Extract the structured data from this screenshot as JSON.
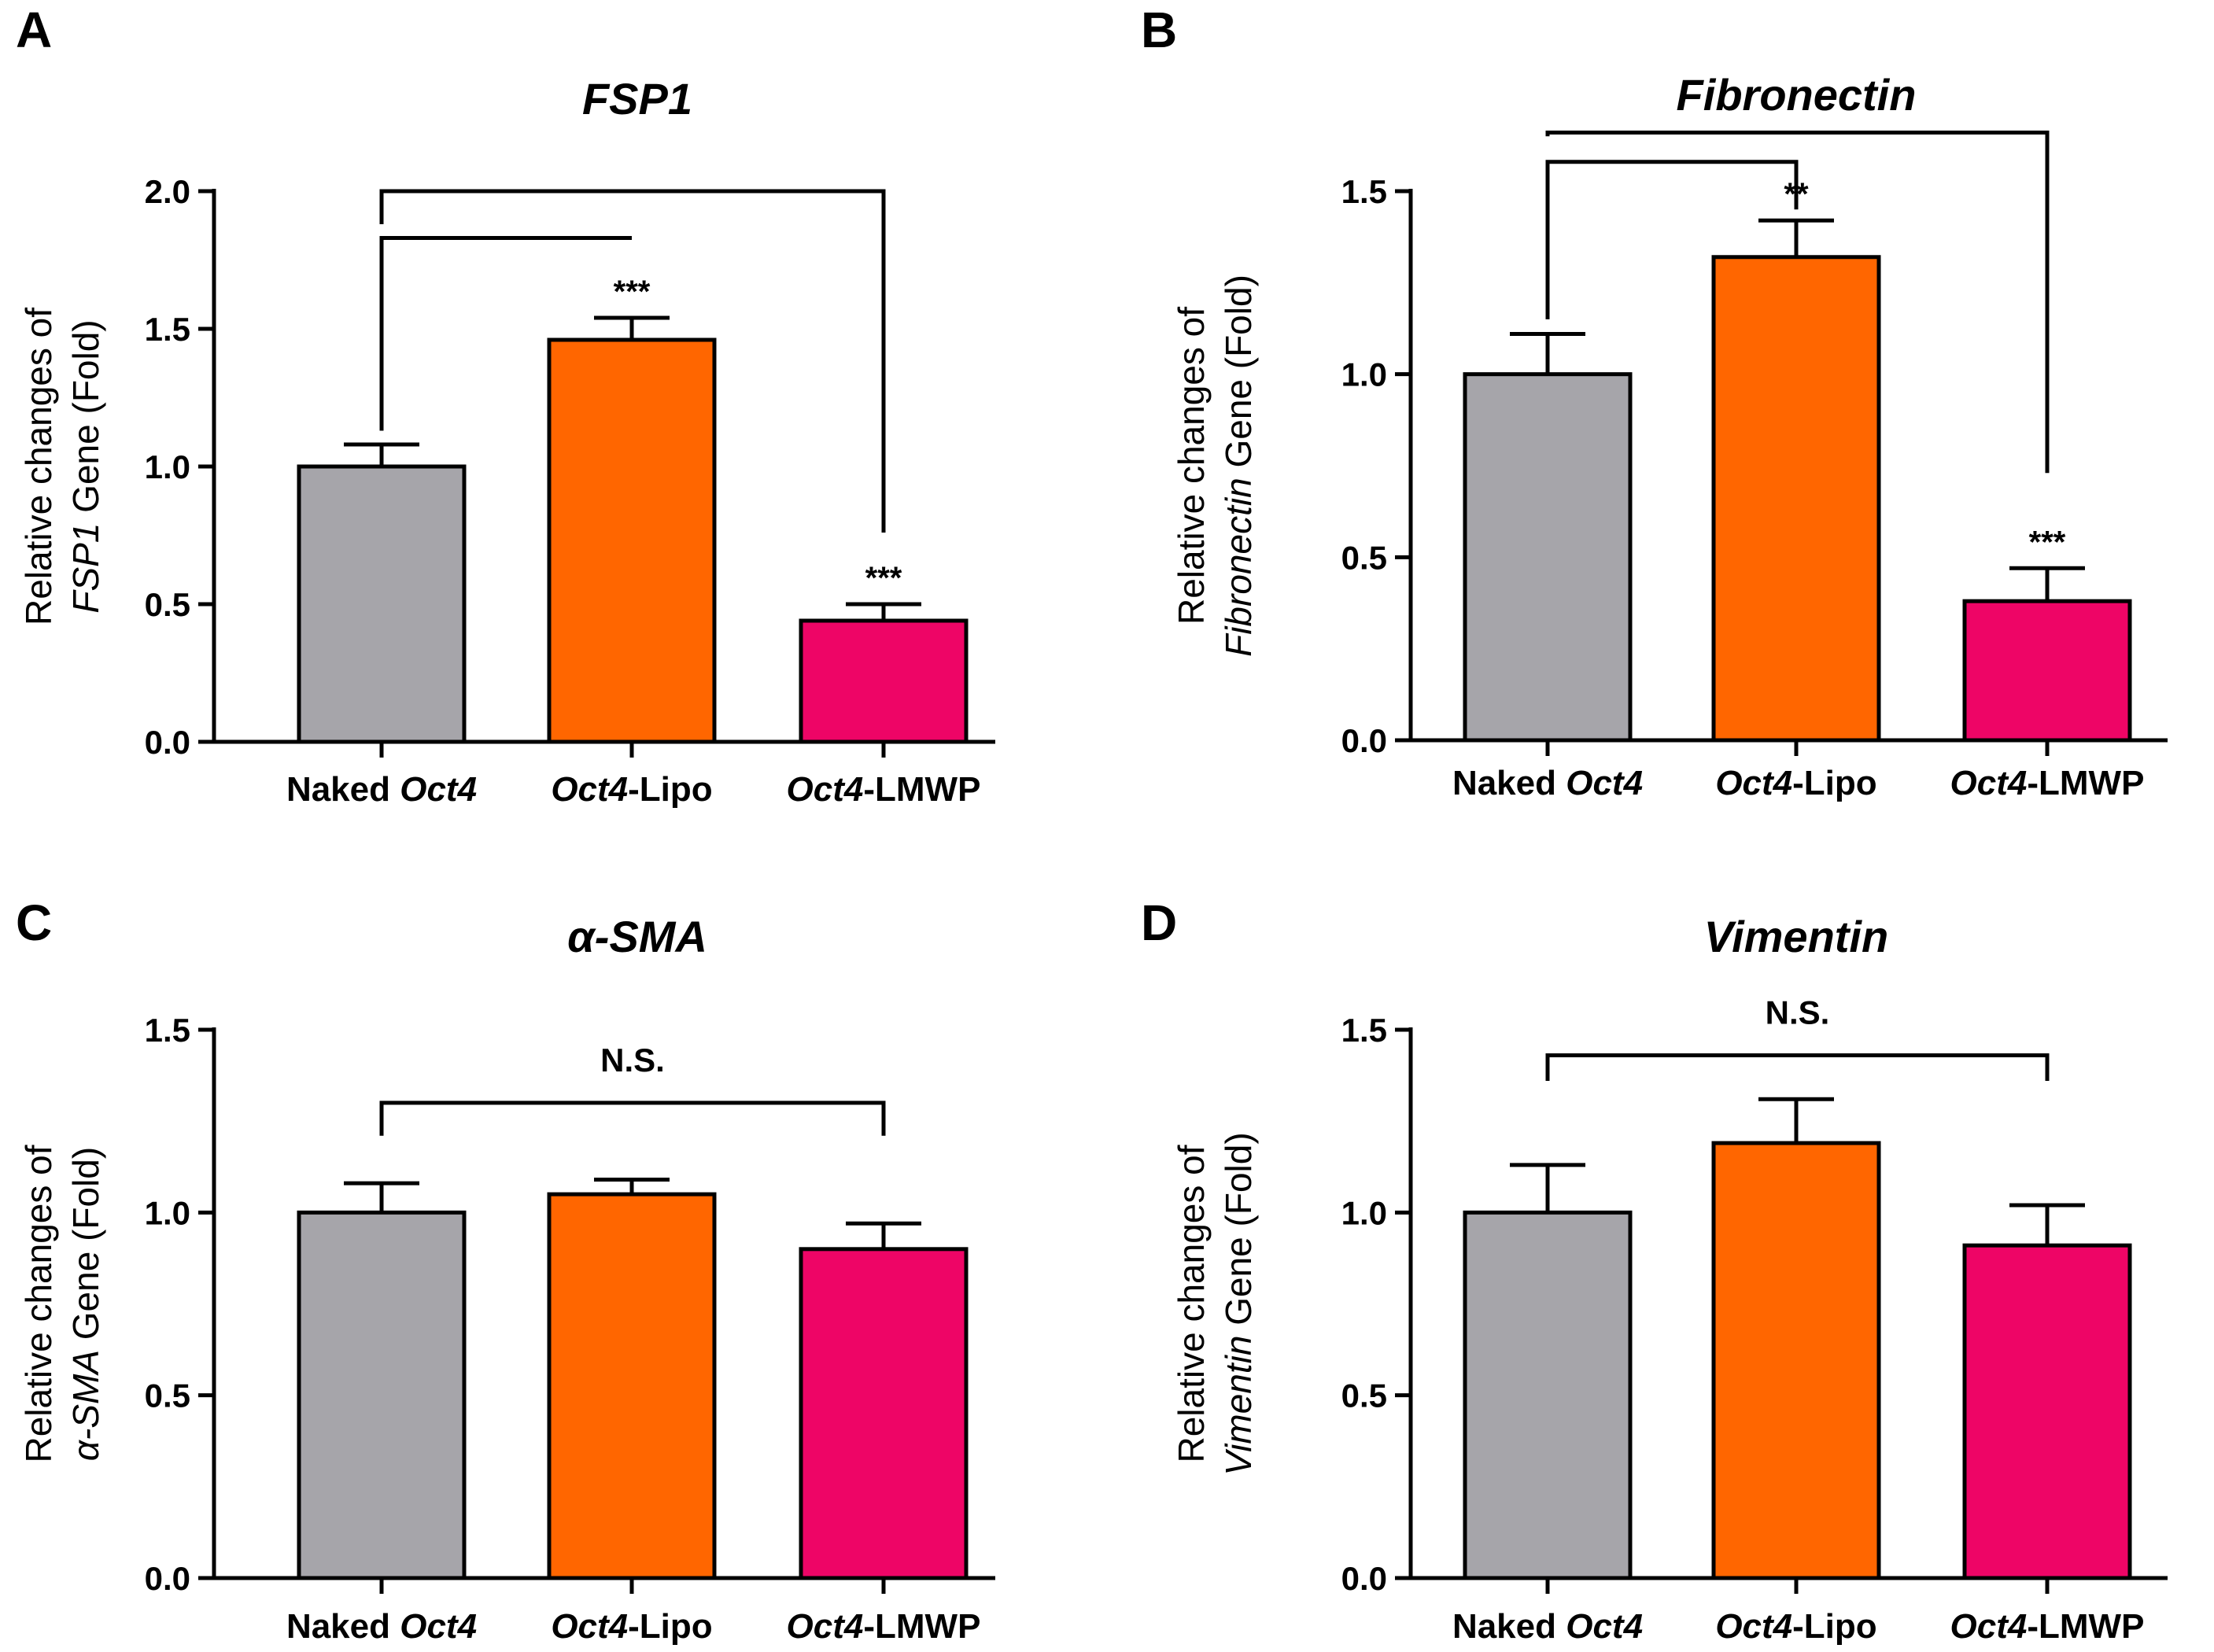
{
  "figure": {
    "panels": [
      "A",
      "B",
      "C",
      "D"
    ]
  },
  "colors": {
    "naked": "#a6a5aa",
    "lipo": "#ff6600",
    "lmwp": "#ee0566"
  },
  "chart_data": [
    {
      "panel": "A",
      "type": "bar",
      "title": "FSP1",
      "ylabel_line1": "Relative changes of",
      "ylabel_gene": "FSP1",
      "ylabel_rest": " Gene (Fold)",
      "ylim": [
        0,
        2.0
      ],
      "yticks": [
        "0.0",
        "0.5",
        "1.0",
        "1.5",
        "2.0"
      ],
      "categories": [
        {
          "italic": "",
          "plain": "Naked ",
          "italic2": "Oct4",
          "plain2": ""
        },
        {
          "italic": "Oct4",
          "plain": "-Lipo",
          "italic2": "",
          "plain2": ""
        },
        {
          "italic": "Oct4",
          "plain": "-LMWP",
          "italic2": "",
          "plain2": ""
        }
      ],
      "values": [
        1.0,
        1.46,
        0.44
      ],
      "errors": [
        0.08,
        0.08,
        0.06
      ],
      "significance": [
        "",
        "***",
        "***"
      ],
      "brackets": [
        {
          "from": 0,
          "to": 1,
          "left_level": 1.13,
          "right_level": 1.83,
          "top": 1.83
        },
        {
          "from": 0,
          "to": 2,
          "left_level": 1.88,
          "right_level": 0.76,
          "top": 2.0
        }
      ],
      "ns_label": ""
    },
    {
      "panel": "B",
      "type": "bar",
      "title": "Fibronectin",
      "ylabel_line1": "Relative changes of",
      "ylabel_gene": "Fibronectin",
      "ylabel_rest": " Gene (Fold)",
      "ylim": [
        0,
        1.5
      ],
      "yticks": [
        "0.0",
        "0.5",
        "1.0",
        "1.5"
      ],
      "categories": [
        {
          "italic": "",
          "plain": "Naked ",
          "italic2": "Oct4",
          "plain2": ""
        },
        {
          "italic": "Oct4",
          "plain": "-Lipo",
          "italic2": "",
          "plain2": ""
        },
        {
          "italic": "Oct4",
          "plain": "-LMWP",
          "italic2": "",
          "plain2": ""
        }
      ],
      "values": [
        1.0,
        1.32,
        0.38
      ],
      "errors": [
        0.11,
        0.1,
        0.09
      ],
      "significance": [
        "",
        "**",
        "***"
      ],
      "brackets": [
        {
          "from": 0,
          "to": 1,
          "left_level": 1.15,
          "right_level": 1.45,
          "top": 1.58
        },
        {
          "from": 0,
          "to": 2,
          "left_level": 1.65,
          "right_level": 0.73,
          "top": 1.66
        }
      ],
      "ns_label": ""
    },
    {
      "panel": "C",
      "type": "bar",
      "title": "α-SMA",
      "ylabel_line1": "Relative changes of",
      "ylabel_gene": "α-SMA",
      "ylabel_rest": " Gene (Fold)",
      "ylim": [
        0,
        1.5
      ],
      "yticks": [
        "0.0",
        "0.5",
        "1.0",
        "1.5"
      ],
      "categories": [
        {
          "italic": "",
          "plain": "Naked ",
          "italic2": "Oct4",
          "plain2": ""
        },
        {
          "italic": "Oct4",
          "plain": "-Lipo",
          "italic2": "",
          "plain2": ""
        },
        {
          "italic": "Oct4",
          "plain": "-LMWP",
          "italic2": "",
          "plain2": ""
        }
      ],
      "values": [
        1.0,
        1.05,
        0.9
      ],
      "errors": [
        0.08,
        0.04,
        0.07
      ],
      "significance": [
        "",
        "",
        ""
      ],
      "brackets": [
        {
          "from": 0,
          "to": 2,
          "left_level": 1.21,
          "right_level": 1.21,
          "top": 1.3
        }
      ],
      "ns_label": "N.S."
    },
    {
      "panel": "D",
      "type": "bar",
      "title": "Vimentin",
      "ylabel_line1": "Relative changes of",
      "ylabel_gene": "Vimentin",
      "ylabel_rest": " Gene (Fold)",
      "ylim": [
        0,
        1.5
      ],
      "yticks": [
        "0.0",
        "0.5",
        "1.0",
        "1.5"
      ],
      "categories": [
        {
          "italic": "",
          "plain": "Naked ",
          "italic2": "Oct4",
          "plain2": ""
        },
        {
          "italic": "Oct4",
          "plain": "-Lipo",
          "italic2": "",
          "plain2": ""
        },
        {
          "italic": "Oct4",
          "plain": "-LMWP",
          "italic2": "",
          "plain2": ""
        }
      ],
      "values": [
        1.0,
        1.19,
        0.91
      ],
      "errors": [
        0.13,
        0.12,
        0.11
      ],
      "significance": [
        "",
        "",
        ""
      ],
      "brackets": [
        {
          "from": 0,
          "to": 2,
          "left_level": 1.36,
          "right_level": 1.36,
          "top": 1.43
        }
      ],
      "ns_label": "N.S."
    }
  ]
}
